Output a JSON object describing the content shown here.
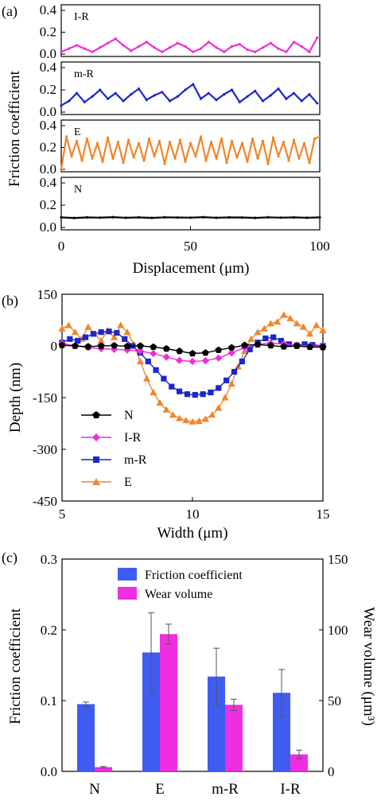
{
  "chart_data": [
    {
      "panel_label": "(a)",
      "type": "line",
      "ylabel": "Friction coefficient",
      "xlabel": "Displacement (μm)",
      "xlim": [
        0,
        100
      ],
      "xticks": [
        "0",
        "50",
        "100"
      ],
      "subplots": [
        {
          "name": "I-R",
          "color": "#ec2fd6",
          "ylim": [
            0,
            0.4
          ],
          "yticks": [
            "0.4",
            "0.2",
            "0.0"
          ],
          "x": [
            0,
            3,
            6,
            9,
            12,
            15,
            18,
            21,
            24,
            27,
            30,
            33,
            36,
            39,
            42,
            45,
            48,
            51,
            54,
            57,
            60,
            63,
            66,
            69,
            72,
            75,
            78,
            81,
            84,
            87,
            90,
            93,
            96,
            99
          ],
          "y": [
            0.02,
            0.05,
            0.08,
            0.05,
            0.02,
            0.06,
            0.1,
            0.14,
            0.08,
            0.03,
            0.07,
            0.11,
            0.06,
            0.02,
            0.06,
            0.1,
            0.07,
            0.02,
            0.05,
            0.11,
            0.06,
            0.02,
            0.07,
            0.09,
            0.04,
            0.02,
            0.06,
            0.1,
            0.05,
            0.02,
            0.11,
            0.07,
            0.02,
            0.15
          ]
        },
        {
          "name": "m-R",
          "color": "#1b28c8",
          "ylim": [
            0,
            0.4
          ],
          "yticks": [
            "0.4",
            "0.2",
            "0.0"
          ],
          "x": [
            0,
            3,
            6,
            9,
            12,
            15,
            18,
            21,
            24,
            27,
            30,
            33,
            36,
            39,
            42,
            45,
            48,
            51,
            54,
            57,
            60,
            63,
            66,
            69,
            72,
            75,
            78,
            81,
            84,
            87,
            90,
            93,
            96,
            99
          ],
          "y": [
            0.06,
            0.1,
            0.17,
            0.09,
            0.14,
            0.2,
            0.12,
            0.17,
            0.1,
            0.16,
            0.21,
            0.11,
            0.15,
            0.18,
            0.1,
            0.14,
            0.2,
            0.25,
            0.12,
            0.17,
            0.11,
            0.16,
            0.2,
            0.09,
            0.14,
            0.19,
            0.1,
            0.15,
            0.21,
            0.12,
            0.17,
            0.1,
            0.16,
            0.08
          ]
        },
        {
          "name": "E",
          "color": "#f0862d",
          "ylim": [
            0,
            0.4
          ],
          "yticks": [
            "0.4",
            "0.2",
            "0.0"
          ],
          "x": [
            0,
            2,
            4,
            6,
            8,
            10,
            12,
            14,
            16,
            18,
            20,
            22,
            24,
            26,
            28,
            30,
            32,
            34,
            36,
            38,
            40,
            42,
            44,
            46,
            48,
            50,
            52,
            54,
            56,
            58,
            60,
            62,
            64,
            66,
            68,
            70,
            72,
            74,
            76,
            78,
            80,
            82,
            84,
            86,
            88,
            90,
            92,
            94,
            96,
            98,
            100
          ],
          "y": [
            0.0,
            0.3,
            0.12,
            0.26,
            0.08,
            0.28,
            0.1,
            0.24,
            0.07,
            0.29,
            0.1,
            0.25,
            0.06,
            0.27,
            0.11,
            0.24,
            0.08,
            0.28,
            0.12,
            0.26,
            0.05,
            0.25,
            0.1,
            0.27,
            0.07,
            0.24,
            0.12,
            0.3,
            0.08,
            0.25,
            0.1,
            0.28,
            0.06,
            0.26,
            0.11,
            0.24,
            0.07,
            0.28,
            0.1,
            0.26,
            0.05,
            0.29,
            0.12,
            0.25,
            0.08,
            0.27,
            0.1,
            0.24,
            0.06,
            0.28,
            0.3
          ]
        },
        {
          "name": "N",
          "color": "#000000",
          "ylim": [
            0,
            0.4
          ],
          "yticks": [
            "0.4",
            "0.2",
            "0.0"
          ],
          "x": [
            0,
            5,
            10,
            15,
            20,
            25,
            30,
            35,
            40,
            45,
            50,
            55,
            60,
            65,
            70,
            75,
            80,
            85,
            90,
            95,
            100
          ],
          "y": [
            0.09,
            0.085,
            0.09,
            0.088,
            0.092,
            0.087,
            0.09,
            0.086,
            0.091,
            0.089,
            0.088,
            0.092,
            0.087,
            0.09,
            0.089,
            0.086,
            0.091,
            0.088,
            0.09,
            0.087,
            0.09
          ]
        }
      ]
    },
    {
      "panel_label": "(b)",
      "type": "line",
      "xlabel": "Width (μm)",
      "ylabel": "Depth (nm)",
      "xlim": [
        5,
        15
      ],
      "ylim": [
        -450,
        150
      ],
      "xticks": [
        5,
        10,
        15
      ],
      "yticks": [
        150,
        0,
        -150,
        -300,
        -450
      ],
      "legend_position": "bottom-left",
      "series": [
        {
          "name": "N",
          "color": "#000000",
          "marker": "pentagon",
          "x": [
            5,
            5.5,
            6,
            6.5,
            7,
            7.5,
            8,
            8.5,
            9,
            9.5,
            10,
            10.5,
            11,
            11.5,
            12,
            12.5,
            13,
            13.5,
            14,
            14.5,
            15
          ],
          "y": [
            2,
            0,
            -2,
            0,
            1,
            -1,
            0,
            -3,
            -8,
            -15,
            -22,
            -20,
            -12,
            -5,
            2,
            4,
            1,
            -2,
            0,
            -3,
            -4
          ]
        },
        {
          "name": "I-R",
          "color": "#ec2fd6",
          "marker": "diamond",
          "x": [
            5,
            5.5,
            6,
            6.5,
            7,
            7.5,
            8,
            8.5,
            9,
            9.5,
            10,
            10.5,
            11,
            11.5,
            12,
            12.5,
            13,
            13.5,
            14,
            14.5,
            15
          ],
          "y": [
            8,
            0,
            -5,
            -8,
            -10,
            -12,
            -15,
            -22,
            -32,
            -42,
            -45,
            -43,
            -35,
            -20,
            -5,
            5,
            8,
            6,
            2,
            0,
            -2
          ]
        },
        {
          "name": "m-R",
          "color": "#1b28c8",
          "marker": "square",
          "x": [
            5,
            5.3,
            5.6,
            5.9,
            6.2,
            6.5,
            6.8,
            7.1,
            7.4,
            7.7,
            8,
            8.3,
            8.6,
            8.9,
            9.2,
            9.5,
            9.8,
            10.1,
            10.4,
            10.7,
            11,
            11.3,
            11.6,
            11.9,
            12.2,
            12.5,
            12.8,
            13.1,
            13.4,
            13.7,
            14,
            14.3,
            14.6,
            15
          ],
          "y": [
            10,
            20,
            15,
            25,
            35,
            40,
            42,
            38,
            20,
            0,
            -20,
            -45,
            -70,
            -95,
            -118,
            -132,
            -140,
            -142,
            -140,
            -135,
            -122,
            -100,
            -75,
            -45,
            -10,
            10,
            22,
            25,
            15,
            5,
            2,
            5,
            3,
            0
          ]
        },
        {
          "name": "E",
          "color": "#f0862d",
          "marker": "triangle",
          "x": [
            5,
            5.25,
            5.5,
            5.75,
            6,
            6.25,
            6.5,
            6.75,
            7,
            7.25,
            7.5,
            7.75,
            8,
            8.25,
            8.5,
            8.75,
            9,
            9.25,
            9.5,
            9.75,
            10,
            10.25,
            10.5,
            10.75,
            11,
            11.25,
            11.5,
            11.75,
            12,
            12.25,
            12.5,
            12.75,
            13,
            13.25,
            13.5,
            13.75,
            14,
            14.25,
            14.5,
            14.75,
            15
          ],
          "y": [
            50,
            60,
            40,
            20,
            55,
            35,
            15,
            45,
            25,
            60,
            40,
            5,
            -45,
            -95,
            -135,
            -165,
            -185,
            -200,
            -210,
            -216,
            -220,
            -218,
            -212,
            -200,
            -180,
            -150,
            -110,
            -60,
            -15,
            20,
            40,
            50,
            65,
            70,
            90,
            80,
            65,
            55,
            35,
            60,
            45
          ]
        }
      ]
    },
    {
      "panel_label": "(c)",
      "type": "bar",
      "categories": [
        "N",
        "E",
        "m-R",
        "I-R"
      ],
      "ylabel": "Friction coefficient",
      "ylabel_right": "Wear volume (μm³)",
      "ylim": [
        0,
        0.3
      ],
      "ylim_right": [
        0,
        150
      ],
      "yticks": [
        "0.0",
        "0.1",
        "0.2",
        "0.3"
      ],
      "yticks_right": [
        "0",
        "50",
        "100",
        "150"
      ],
      "legend_position": "top",
      "series": [
        {
          "name": "Friction coefficient",
          "color": "#3f5cf2",
          "axis": "left",
          "values": [
            0.095,
            0.168,
            0.134,
            0.111
          ],
          "errors": [
            0.003,
            0.056,
            0.04,
            0.033
          ]
        },
        {
          "name": "Wear volume",
          "color": "#ee2ee0",
          "axis": "right",
          "values": [
            3,
            97,
            47,
            12
          ],
          "errors": [
            0.5,
            7,
            4,
            3
          ]
        }
      ]
    }
  ]
}
